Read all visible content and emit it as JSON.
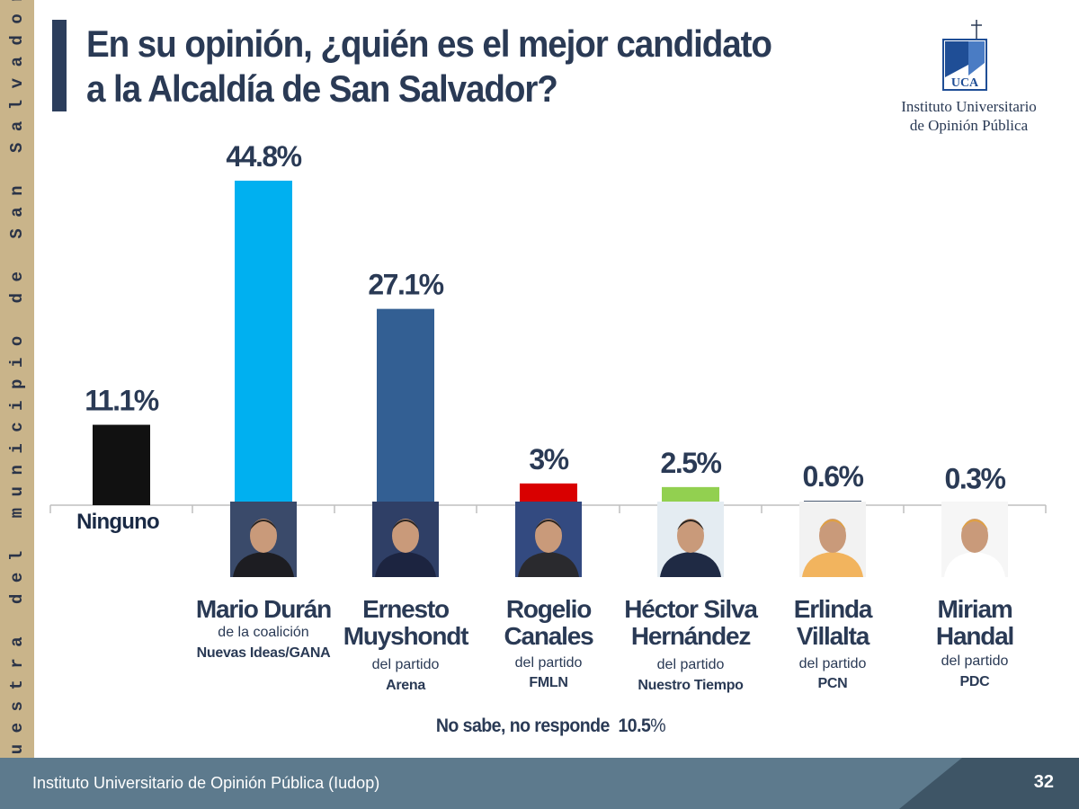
{
  "sidebar_text": "Muestra del municipio de San Salvador",
  "title_line1": "En su opinión, ¿quién es el mejor candidato",
  "title_line2": "a la Alcaldía de San Salvador?",
  "logo": {
    "mark_text": "UCA",
    "name_line1": "Instituto Universitario",
    "name_line2": "de Opinión Pública"
  },
  "no_answer": {
    "label": "No sabe, no responde",
    "value": "10.5",
    "unit": "%"
  },
  "footer": {
    "text": "Instituto Universitario de Opinión Pública (Iudop)",
    "page": "32"
  },
  "chart_data": {
    "type": "bar",
    "title": "En su opinión, ¿quién es el mejor candidato a la Alcaldía de San Salvador?",
    "unit": "%",
    "ylim": [
      0,
      45
    ],
    "categories": [
      "Ninguno",
      "Mario Durán",
      "Ernesto Muyshondt",
      "Rogelio Canales",
      "Héctor Silva Hernández",
      "Erlinda Villalta",
      "Miriam Handal"
    ],
    "values": [
      11.1,
      44.8,
      27.1,
      3,
      2.5,
      0.6,
      0.3
    ],
    "value_labels": [
      "11.1%",
      "44.8%",
      "27.1%",
      "3%",
      "2.5%",
      "0.6%",
      "0.3%"
    ],
    "colors": [
      "#111111",
      "#00b0f0",
      "#335f93",
      "#d90000",
      "#92d050",
      "#2c3e5c",
      "#2c3e5c"
    ],
    "candidates": [
      {
        "name_lines": [
          "Ninguno"
        ],
        "affiliation": "",
        "party": ""
      },
      {
        "name_lines": [
          "Mario Durán"
        ],
        "affiliation": "de la coalición",
        "party": "Nuevas Ideas/GANA"
      },
      {
        "name_lines": [
          "Ernesto",
          "Muyshondt"
        ],
        "affiliation": "del partido",
        "party": "Arena"
      },
      {
        "name_lines": [
          "Rogelio",
          "Canales"
        ],
        "affiliation": "del partido",
        "party": "FMLN"
      },
      {
        "name_lines": [
          "Héctor Silva",
          "Hernández"
        ],
        "affiliation": "del partido",
        "party": "Nuestro Tiempo"
      },
      {
        "name_lines": [
          "Erlinda",
          "Villalta"
        ],
        "affiliation": "del partido",
        "party": "PCN"
      },
      {
        "name_lines": [
          "Miriam",
          "Handal"
        ],
        "affiliation": "del partido",
        "party": "PDC"
      }
    ]
  }
}
